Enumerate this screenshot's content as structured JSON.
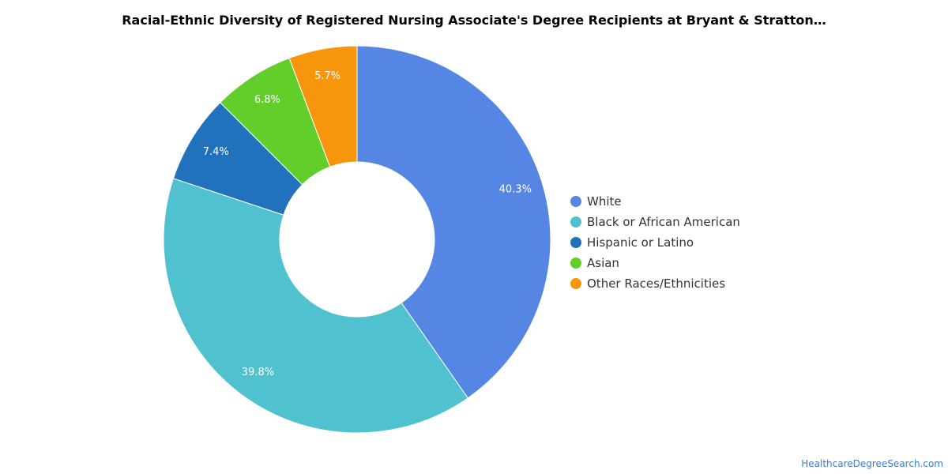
{
  "chart_data": {
    "type": "pie",
    "donut": true,
    "title": "Racial-Ethnic Diversity of Registered Nursing Associate's Degree Recipients at Bryant & Stratton…",
    "legend_position": "right",
    "slices": [
      {
        "label": "White",
        "value": 40.3,
        "value_label": "40.3%",
        "color": "#5586e4"
      },
      {
        "label": "Black or African American",
        "value": 39.8,
        "value_label": "39.8%",
        "color": "#50c1cf"
      },
      {
        "label": "Hispanic or Latino",
        "value": 7.4,
        "value_label": "7.4%",
        "color": "#1f72bb"
      },
      {
        "label": "Asian",
        "value": 6.8,
        "value_label": "6.8%",
        "color": "#62ce2a"
      },
      {
        "label": "Other Races/Ethnicities",
        "value": 5.7,
        "value_label": "5.7%",
        "color": "#f7960d"
      }
    ]
  },
  "source": "HealthcareDegreeSearch.com"
}
